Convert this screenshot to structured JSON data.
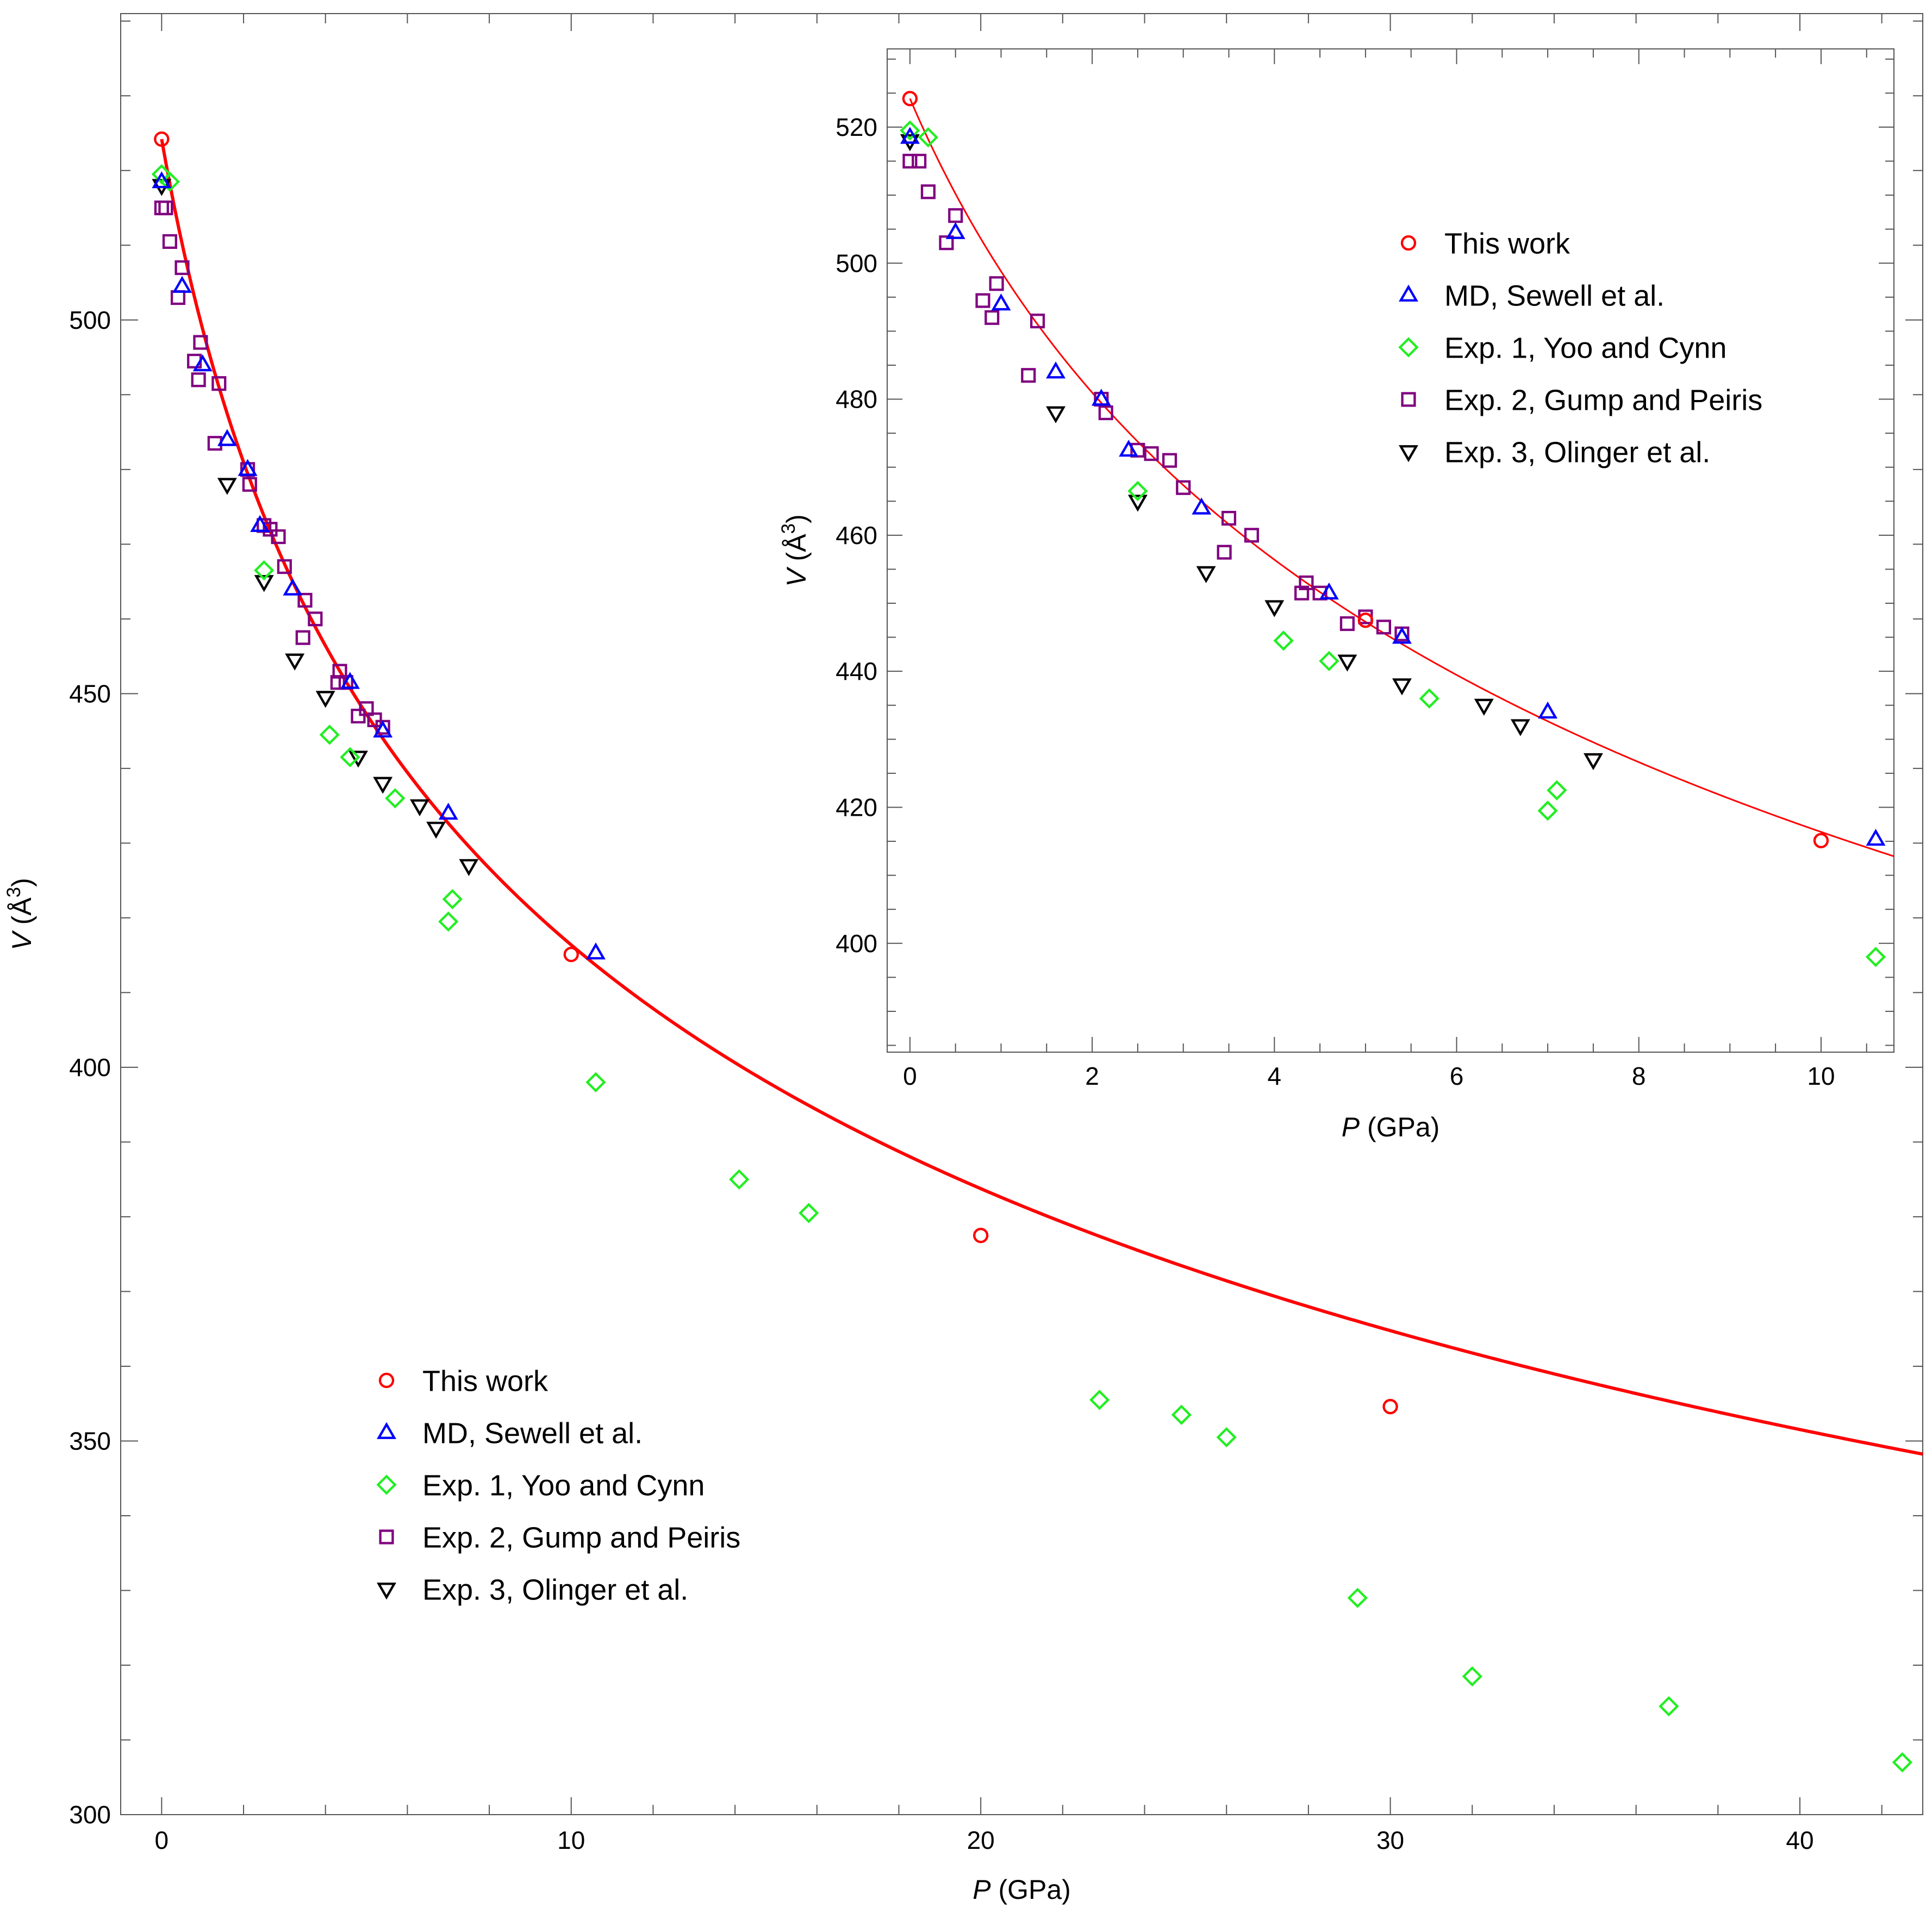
{
  "colors": {
    "this_work": "#ff0000",
    "md": "#0000ff",
    "exp1": "#22ee22",
    "exp2": "#800080",
    "exp3": "#000000",
    "fit": "#ff0000",
    "frame": "#555555"
  },
  "chart_data": [
    {
      "id": "main",
      "type": "scatter",
      "title": "",
      "xlabel": {
        "var": "P",
        "unit": " (GPa)"
      },
      "ylabel": {
        "var": "V",
        "unit_pre": " (Å",
        "unit_sup": "3",
        "unit_post": ")"
      },
      "xlim": [
        -1,
        43
      ],
      "ylim": [
        300,
        541
      ],
      "xticks": [
        0,
        10,
        20,
        30,
        40
      ],
      "xtick_labels": [
        "0",
        "10",
        "20",
        "30",
        "40"
      ],
      "yticks": [
        300,
        350,
        400,
        450,
        500
      ],
      "ytick_labels": [
        "300",
        "350",
        "400",
        "450",
        "500"
      ],
      "fit_curve": {
        "name": "fit",
        "P_range": [
          0,
          43
        ]
      },
      "legend_position": "lower-left",
      "series": [
        {
          "key": "this_work",
          "name": "This work",
          "marker": "circle",
          "points": [
            [
              0,
              524.2
            ],
            [
              10,
              415.1
            ],
            [
              20,
              377.5
            ],
            [
              30,
              354.6
            ]
          ]
        },
        {
          "key": "md",
          "name": "MD, Sewell et al.",
          "marker": "triangle-up",
          "points": [
            [
              0,
              518.5
            ],
            [
              0.5,
              504.5
            ],
            [
              1.0,
              494.0
            ],
            [
              1.6,
              484.0
            ],
            [
              2.1,
              480.0
            ],
            [
              2.4,
              472.5
            ],
            [
              3.2,
              464.0
            ],
            [
              4.6,
              451.5
            ],
            [
              5.4,
              445.0
            ],
            [
              7.0,
              434.0
            ],
            [
              10.6,
              415.3
            ]
          ]
        },
        {
          "key": "exp1",
          "name": "Exp. 1, Yoo and Cynn",
          "marker": "diamond",
          "points": [
            [
              0,
              519.5
            ],
            [
              0.2,
              518.5
            ],
            [
              2.5,
              466.5
            ],
            [
              4.1,
              444.5
            ],
            [
              4.6,
              441.5
            ],
            [
              5.7,
              436.0
            ],
            [
              7.0,
              419.5
            ],
            [
              7.1,
              422.5
            ],
            [
              10.6,
              398.0
            ],
            [
              14.1,
              385.0
            ],
            [
              15.8,
              380.5
            ],
            [
              22.9,
              355.5
            ],
            [
              24.9,
              353.5
            ],
            [
              26.0,
              350.5
            ],
            [
              29.2,
              329.0
            ],
            [
              32.0,
              318.5
            ],
            [
              36.8,
              314.5
            ],
            [
              42.5,
              307.0
            ]
          ]
        },
        {
          "key": "exp2",
          "name": "Exp. 2, Gump and Peiris",
          "marker": "square",
          "points": [
            [
              0,
              515.0
            ],
            [
              0.1,
              515.0
            ],
            [
              0.2,
              510.5
            ],
            [
              0.4,
              503.0
            ],
            [
              0.5,
              507.0
            ],
            [
              0.8,
              494.5
            ],
            [
              0.9,
              492.0
            ],
            [
              0.95,
              497.0
            ],
            [
              1.3,
              483.5
            ],
            [
              1.4,
              491.5
            ],
            [
              2.1,
              480.0
            ],
            [
              2.15,
              478.0
            ],
            [
              2.5,
              472.5
            ],
            [
              2.65,
              472.0
            ],
            [
              2.85,
              471.0
            ],
            [
              3.0,
              467.0
            ],
            [
              3.45,
              457.5
            ],
            [
              3.5,
              462.5
            ],
            [
              3.75,
              460.0
            ],
            [
              4.3,
              451.5
            ],
            [
              4.35,
              453.0
            ],
            [
              4.5,
              451.5
            ],
            [
              4.8,
              447.0
            ],
            [
              5.0,
              448.0
            ],
            [
              5.2,
              446.5
            ],
            [
              5.4,
              445.5
            ]
          ]
        },
        {
          "key": "exp3",
          "name": "Exp. 3, Olinger et al.",
          "marker": "triangle-down",
          "points": [
            [
              0,
              518.0
            ],
            [
              1.6,
              478.0
            ],
            [
              2.5,
              465.0
            ],
            [
              3.25,
              454.5
            ],
            [
              4.0,
              449.5
            ],
            [
              4.8,
              441.5
            ],
            [
              5.4,
              438.0
            ],
            [
              6.3,
              435.0
            ],
            [
              6.7,
              432.0
            ],
            [
              7.5,
              427.0
            ]
          ]
        }
      ]
    },
    {
      "id": "inset",
      "type": "scatter",
      "title": "",
      "xlabel": {
        "var": "P",
        "unit": " (GPa)"
      },
      "ylabel": {
        "var": "V",
        "unit_pre": " (Å",
        "unit_sup": "3",
        "unit_post": ")"
      },
      "xlim": [
        -0.25,
        10.8
      ],
      "ylim": [
        384,
        531.5
      ],
      "xticks": [
        0,
        2,
        4,
        6,
        8,
        10
      ],
      "xtick_labels": [
        "0",
        "2",
        "4",
        "6",
        "8",
        "10"
      ],
      "yticks": [
        400,
        420,
        440,
        460,
        480,
        500,
        520
      ],
      "ytick_labels": [
        "400",
        "420",
        "440",
        "460",
        "480",
        "500",
        "520"
      ],
      "fit_curve": {
        "name": "fit",
        "P_range": [
          0,
          10.8
        ]
      },
      "legend_position": "top-right",
      "series": [
        {
          "key": "this_work",
          "name": "This work",
          "marker": "circle",
          "points": [
            [
              0,
              524.2
            ],
            [
              5.0,
              447.5
            ],
            [
              10,
              415.1
            ]
          ]
        },
        {
          "key": "md",
          "name": "MD, Sewell et al.",
          "marker": "triangle-up",
          "points": [
            [
              0,
              518.5
            ],
            [
              0.5,
              504.5
            ],
            [
              1.0,
              494.0
            ],
            [
              1.6,
              484.0
            ],
            [
              2.1,
              480.0
            ],
            [
              2.4,
              472.5
            ],
            [
              3.2,
              464.0
            ],
            [
              4.6,
              451.5
            ],
            [
              5.4,
              445.0
            ],
            [
              7.0,
              434.0
            ],
            [
              10.6,
              415.3
            ]
          ]
        },
        {
          "key": "exp1",
          "name": "Exp. 1, Yoo and Cynn",
          "marker": "diamond",
          "points": [
            [
              0,
              519.5
            ],
            [
              0.2,
              518.5
            ],
            [
              2.5,
              466.5
            ],
            [
              4.1,
              444.5
            ],
            [
              4.6,
              441.5
            ],
            [
              5.7,
              436.0
            ],
            [
              7.0,
              419.5
            ],
            [
              7.1,
              422.5
            ],
            [
              10.6,
              398.0
            ]
          ]
        },
        {
          "key": "exp2",
          "name": "Exp. 2, Gump and Peiris",
          "marker": "square",
          "points": [
            [
              0,
              515.0
            ],
            [
              0.1,
              515.0
            ],
            [
              0.2,
              510.5
            ],
            [
              0.4,
              503.0
            ],
            [
              0.5,
              507.0
            ],
            [
              0.8,
              494.5
            ],
            [
              0.9,
              492.0
            ],
            [
              0.95,
              497.0
            ],
            [
              1.3,
              483.5
            ],
            [
              1.4,
              491.5
            ],
            [
              2.1,
              480.0
            ],
            [
              2.15,
              478.0
            ],
            [
              2.5,
              472.5
            ],
            [
              2.65,
              472.0
            ],
            [
              2.85,
              471.0
            ],
            [
              3.0,
              467.0
            ],
            [
              3.45,
              457.5
            ],
            [
              3.5,
              462.5
            ],
            [
              3.75,
              460.0
            ],
            [
              4.3,
              451.5
            ],
            [
              4.35,
              453.0
            ],
            [
              4.5,
              451.5
            ],
            [
              4.8,
              447.0
            ],
            [
              5.0,
              448.0
            ],
            [
              5.2,
              446.5
            ],
            [
              5.4,
              445.5
            ]
          ]
        },
        {
          "key": "exp3",
          "name": "Exp. 3, Olinger et al.",
          "marker": "triangle-down",
          "points": [
            [
              0,
              518.0
            ],
            [
              1.6,
              478.0
            ],
            [
              2.5,
              465.0
            ],
            [
              3.25,
              454.5
            ],
            [
              4.0,
              449.5
            ],
            [
              4.8,
              441.5
            ],
            [
              5.4,
              438.0
            ],
            [
              6.3,
              435.0
            ],
            [
              6.7,
              432.0
            ],
            [
              7.5,
              427.0
            ]
          ]
        }
      ]
    }
  ]
}
